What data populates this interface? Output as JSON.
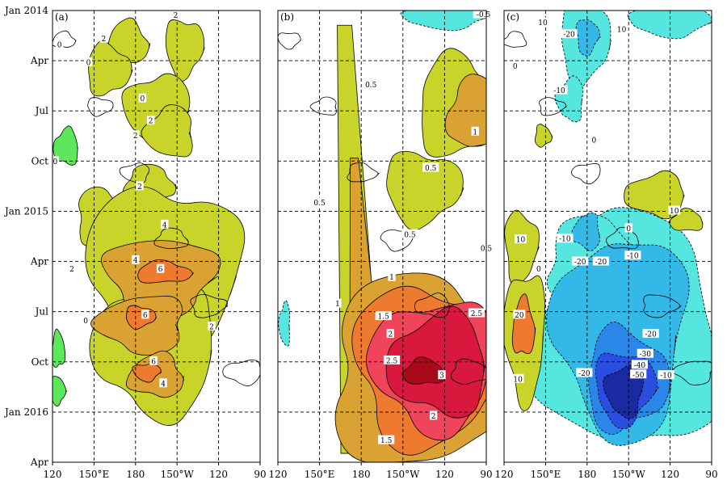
{
  "chart_data": {
    "type": "heatmap",
    "description_axes": "Hovmoller diagram: longitude (x) vs time (y)",
    "y_ticks": [
      "Jan 2014",
      "Apr",
      "Jul",
      "Oct",
      "Jan 2015",
      "Apr",
      "Jul",
      "Oct",
      "Jan 2016",
      "Apr"
    ],
    "x_ticks": [
      "120",
      "150°E",
      "180",
      "150°W",
      "120",
      "90"
    ],
    "grid": true,
    "panels": [
      {
        "tag": "(a)",
        "contour_levels": [
          0,
          2,
          4,
          6
        ],
        "labels": [
          {
            "text": "2",
            "lon": 157,
            "t": 3.8
          },
          {
            "text": "2",
            "lon": 209,
            "t": 0.6
          },
          {
            "text": "0",
            "lon": 125,
            "t": 4.6
          },
          {
            "text": "0",
            "lon": 146,
            "t": 7.0
          },
          {
            "text": "0",
            "lon": 185,
            "t": 11.9
          },
          {
            "text": "2",
            "lon": 191,
            "t": 14.9
          },
          {
            "text": "2",
            "lon": 180,
            "t": 16.9
          },
          {
            "text": "0",
            "lon": 122,
            "t": 20.4
          },
          {
            "text": "2",
            "lon": 183,
            "t": 23.8
          },
          {
            "text": "4",
            "lon": 201,
            "t": 29.0
          },
          {
            "text": "4",
            "lon": 180,
            "t": 33.8
          },
          {
            "text": "6",
            "lon": 198,
            "t": 35.0
          },
          {
            "text": "2",
            "lon": 134,
            "t": 35.0
          },
          {
            "text": "6",
            "lon": 187,
            "t": 41.2
          },
          {
            "text": "0",
            "lon": 144,
            "t": 42.0
          },
          {
            "text": "2",
            "lon": 235,
            "t": 42.8
          },
          {
            "text": "6",
            "lon": 193,
            "t": 47.5
          },
          {
            "text": "4",
            "lon": 200,
            "t": 50.5
          }
        ],
        "blobs": [
          {
            "level": 2,
            "lon": 174,
            "t": 4.4,
            "dlon": 15,
            "dt": 3.0
          },
          {
            "level": 2,
            "lon": 160,
            "t": 8.0,
            "dlon": 16,
            "dt": 3.5
          },
          {
            "level": 2,
            "lon": 215,
            "t": 5.0,
            "dlon": 14,
            "dt": 4.0
          },
          {
            "level": 2,
            "lon": 196,
            "t": 13.5,
            "dlon": 24,
            "dt": 5.0
          },
          {
            "level": 2,
            "lon": 205,
            "t": 16.5,
            "dlon": 18,
            "dt": 3.5
          },
          {
            "level": 2,
            "lon": 190,
            "t": 23.5,
            "dlon": 18,
            "dt": 2.5
          },
          {
            "level": 2,
            "lon": 155,
            "t": 28.0,
            "dlon": 18,
            "dt": 4.0
          },
          {
            "level": 2,
            "lon": 200,
            "t": 36.0,
            "dlon": 55,
            "dt": 13.0
          },
          {
            "level": 2,
            "lon": 195,
            "t": 46.0,
            "dlon": 45,
            "dt": 9.0
          },
          {
            "level": 4,
            "lon": 198,
            "t": 36.0,
            "dlon": 40,
            "dt": 5.5
          },
          {
            "level": 4,
            "lon": 185,
            "t": 42.5,
            "dlon": 32,
            "dt": 4.0
          },
          {
            "level": 4,
            "lon": 195,
            "t": 49.5,
            "dlon": 20,
            "dt": 3.0
          },
          {
            "level": 6,
            "lon": 200,
            "t": 35.5,
            "dlon": 20,
            "dt": 1.5
          },
          {
            "level": 6,
            "lon": 183,
            "t": 41.5,
            "dlon": 11,
            "dt": 1.5
          },
          {
            "level": 6,
            "lon": 188,
            "t": 49.0,
            "dlon": 10,
            "dt": 1.2
          },
          {
            "level": -2,
            "lon": 130,
            "t": 18.5,
            "dlon": 9,
            "dt": 2.5
          },
          {
            "level": -2,
            "lon": 124,
            "t": 46.0,
            "dlon": 5,
            "dt": 2.5
          },
          {
            "level": -2,
            "lon": 124,
            "t": 51.5,
            "dlon": 5,
            "dt": 2.0
          }
        ]
      },
      {
        "tag": "(b)",
        "contour_levels": [
          -0.5,
          0,
          0.5,
          1,
          1.5,
          2,
          2.5,
          3
        ],
        "labels": [
          {
            "text": "-0.5",
            "lon": 268,
            "t": 0.5
          },
          {
            "text": "0.5",
            "lon": 187,
            "t": 10.0
          },
          {
            "text": "1",
            "lon": 262,
            "t": 16.4
          },
          {
            "text": "0.5",
            "lon": 230,
            "t": 21.3
          },
          {
            "text": "0.5",
            "lon": 150,
            "t": 26.0
          },
          {
            "text": "0.5",
            "lon": 215,
            "t": 30.3
          },
          {
            "text": "0.5",
            "lon": 270,
            "t": 32.2
          },
          {
            "text": "1",
            "lon": 202,
            "t": 36.1
          },
          {
            "text": "1",
            "lon": 163,
            "t": 39.7
          },
          {
            "text": "1.5",
            "lon": 196,
            "t": 41.4
          },
          {
            "text": "2.5",
            "lon": 263,
            "t": 41.0
          },
          {
            "text": "2",
            "lon": 201,
            "t": 43.8
          },
          {
            "text": "2.5",
            "lon": 202,
            "t": 47.4
          },
          {
            "text": "3",
            "lon": 238,
            "t": 49.4
          },
          {
            "text": "2",
            "lon": 232,
            "t": 54.9
          },
          {
            "text": "1.5",
            "lon": 198,
            "t": 58.2
          }
        ],
        "bands": [
          {
            "level": 0.5,
            "start_lon": 168,
            "start_t": 2.0,
            "end_lon": 180,
            "end_t": 60.0,
            "width": 18
          },
          {
            "level": 1,
            "start_lon": 175,
            "start_t": 20.0,
            "end_lon": 180,
            "end_t": 40.0,
            "width": 10
          }
        ],
        "blobs": [
          {
            "level": 0.5,
            "lon": 250,
            "t": 13.0,
            "dlon": 30,
            "dt": 7.0
          },
          {
            "level": 0.5,
            "lon": 224,
            "t": 24.0,
            "dlon": 28,
            "dt": 5.0
          },
          {
            "level": 1,
            "lon": 262,
            "t": 14.0,
            "dlon": 20,
            "dt": 5.0
          },
          {
            "level": 1,
            "lon": 225,
            "t": 49.0,
            "dlon": 70,
            "dt": 13.0
          },
          {
            "level": 1.5,
            "lon": 228,
            "t": 48.0,
            "dlon": 55,
            "dt": 11.0
          },
          {
            "level": 2,
            "lon": 232,
            "t": 48.0,
            "dlon": 45,
            "dt": 9.0
          },
          {
            "level": 2.5,
            "lon": 236,
            "t": 48.0,
            "dlon": 36,
            "dt": 7.0
          },
          {
            "level": 3,
            "lon": 225,
            "t": 49.0,
            "dlon": 15,
            "dt": 1.8
          },
          {
            "level": -0.5,
            "lon": 240,
            "t": 1.0,
            "dlon": 30,
            "dt": 1.5
          },
          {
            "level": -0.5,
            "lon": 125,
            "t": 42.5,
            "dlon": 4,
            "dt": 3.0
          }
        ]
      },
      {
        "tag": "(c)",
        "contour_levels": [
          -50,
          -40,
          -30,
          -20,
          -10,
          0,
          10,
          20
        ],
        "labels": [
          {
            "text": "10",
            "lon": 148,
            "t": 1.6
          },
          {
            "text": "-20",
            "lon": 167,
            "t": 3.2
          },
          {
            "text": "10",
            "lon": 205,
            "t": 2.5
          },
          {
            "text": "0",
            "lon": 128,
            "t": 7.5
          },
          {
            "text": "-10",
            "lon": 160,
            "t": 10.8
          },
          {
            "text": "0",
            "lon": 185,
            "t": 17.5
          },
          {
            "text": "10",
            "lon": 243,
            "t": 27.1
          },
          {
            "text": "10",
            "lon": 132,
            "t": 31.0
          },
          {
            "text": "-10",
            "lon": 164,
            "t": 30.9
          },
          {
            "text": "0",
            "lon": 210,
            "t": 29.5
          },
          {
            "text": "-20",
            "lon": 175,
            "t": 34.0
          },
          {
            "text": "-20",
            "lon": 190,
            "t": 34.0
          },
          {
            "text": "-10",
            "lon": 213,
            "t": 33.2
          },
          {
            "text": "0",
            "lon": 145,
            "t": 35.0
          },
          {
            "text": "20",
            "lon": 131,
            "t": 41.2
          },
          {
            "text": "-20",
            "lon": 226,
            "t": 43.8
          },
          {
            "text": "-30",
            "lon": 222,
            "t": 46.5
          },
          {
            "text": "-40",
            "lon": 218,
            "t": 48.0
          },
          {
            "text": "-20",
            "lon": 178,
            "t": 49.1
          },
          {
            "text": "-50",
            "lon": 217,
            "t": 49.3
          },
          {
            "text": "-10",
            "lon": 237,
            "t": 49.4
          },
          {
            "text": "10",
            "lon": 130,
            "t": 49.9
          }
        ],
        "blobs": [
          {
            "level": -10,
            "lon": 178,
            "t": 4.0,
            "dlon": 18,
            "dt": 6.0
          },
          {
            "level": -20,
            "lon": 180,
            "t": 3.5,
            "dlon": 8,
            "dt": 2.5
          },
          {
            "level": -10,
            "lon": 240,
            "t": 1.5,
            "dlon": 30,
            "dt": 2.0
          },
          {
            "level": -10,
            "lon": 168,
            "t": 12.0,
            "dlon": 10,
            "dt": 3.0
          },
          {
            "level": -10,
            "lon": 210,
            "t": 44.0,
            "dlon": 70,
            "dt": 16.0
          },
          {
            "level": -20,
            "lon": 205,
            "t": 44.0,
            "dlon": 48,
            "dt": 14.0
          },
          {
            "level": -10,
            "lon": 185,
            "t": 34.0,
            "dlon": 35,
            "dt": 6.0
          },
          {
            "level": -20,
            "lon": 180,
            "t": 30.0,
            "dlon": 10,
            "dt": 2.5
          },
          {
            "level": -30,
            "lon": 208,
            "t": 50.0,
            "dlon": 30,
            "dt": 7.0
          },
          {
            "level": -40,
            "lon": 207,
            "t": 51.0,
            "dlon": 22,
            "dt": 5.0
          },
          {
            "level": -50,
            "lon": 207,
            "t": 51.5,
            "dlon": 14,
            "dt": 3.5
          },
          {
            "level": 10,
            "lon": 132,
            "t": 32.0,
            "dlon": 12,
            "dt": 5.0
          },
          {
            "level": 10,
            "lon": 135,
            "t": 44.0,
            "dlon": 15,
            "dt": 9.0
          },
          {
            "level": 20,
            "lon": 134,
            "t": 43.0,
            "dlon": 8,
            "dt": 4.0
          },
          {
            "level": 10,
            "lon": 230,
            "t": 25.0,
            "dlon": 22,
            "dt": 3.0
          },
          {
            "level": 10,
            "lon": 252,
            "t": 28.5,
            "dlon": 12,
            "dt": 1.5
          },
          {
            "level": 10,
            "lon": 148,
            "t": 17.0,
            "dlon": 6,
            "dt": 1.5
          }
        ]
      }
    ],
    "colors": {
      "pos_levels": {
        "0.5": "#c8d42a",
        "1": "#d9a232",
        "1.5": "#ee7a2f",
        "2": "#f0445a",
        "2.5": "#d8183c",
        "3": "#a80a1a",
        "4": "#d9a232",
        "6": "#ee7a2f"
      },
      "a_levels": {
        "2": "#c8d42a",
        "4": "#d9a232",
        "6": "#ee7a2f",
        "-2": "#5ce85a"
      },
      "b_neg": "#56e6e0",
      "c_levels": {
        "10": "#c8d42a",
        "20": "#ee7a2f",
        "-10": "#56e6e0",
        "-20": "#33b8e8",
        "-30": "#2a87e8",
        "-40": "#2a4fe0",
        "-50": "#1a2aa0"
      }
    }
  }
}
